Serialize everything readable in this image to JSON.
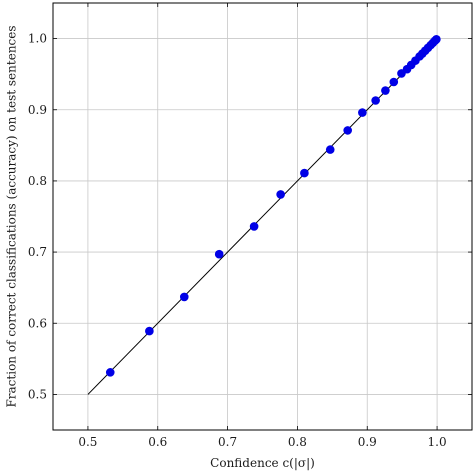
{
  "chart_data": {
    "type": "scatter",
    "title": "",
    "xlabel": "Confidence c(|σ|)",
    "ylabel": "Fraction of correct classifications (accuracy) on test sentences",
    "xlim": [
      0.45,
      1.05
    ],
    "ylim": [
      0.45,
      1.05
    ],
    "xticks": [
      "0.5",
      "0.6",
      "0.7",
      "0.8",
      "0.9",
      "1.0"
    ],
    "yticks": [
      "0.5",
      "0.6",
      "0.7",
      "0.8",
      "0.9",
      "1.0"
    ],
    "grid": true,
    "legend": "none",
    "reference_line": {
      "x": [
        0.5,
        1.0
      ],
      "y": [
        0.5,
        1.0
      ],
      "color": "#000000"
    },
    "series": [
      {
        "color": "#0000e6",
        "x": [
          0.532,
          0.588,
          0.638,
          0.688,
          0.738,
          0.776,
          0.81,
          0.847,
          0.872,
          0.893,
          0.912,
          0.926,
          0.938,
          0.949,
          0.957,
          0.963,
          0.969,
          0.975,
          0.979,
          0.983,
          0.987,
          0.991,
          0.994,
          0.997,
          0.999
        ],
        "y": [
          0.531,
          0.589,
          0.637,
          0.697,
          0.736,
          0.781,
          0.811,
          0.844,
          0.871,
          0.896,
          0.913,
          0.927,
          0.939,
          0.951,
          0.957,
          0.963,
          0.969,
          0.975,
          0.979,
          0.983,
          0.987,
          0.991,
          0.994,
          0.997,
          0.999
        ]
      }
    ]
  }
}
